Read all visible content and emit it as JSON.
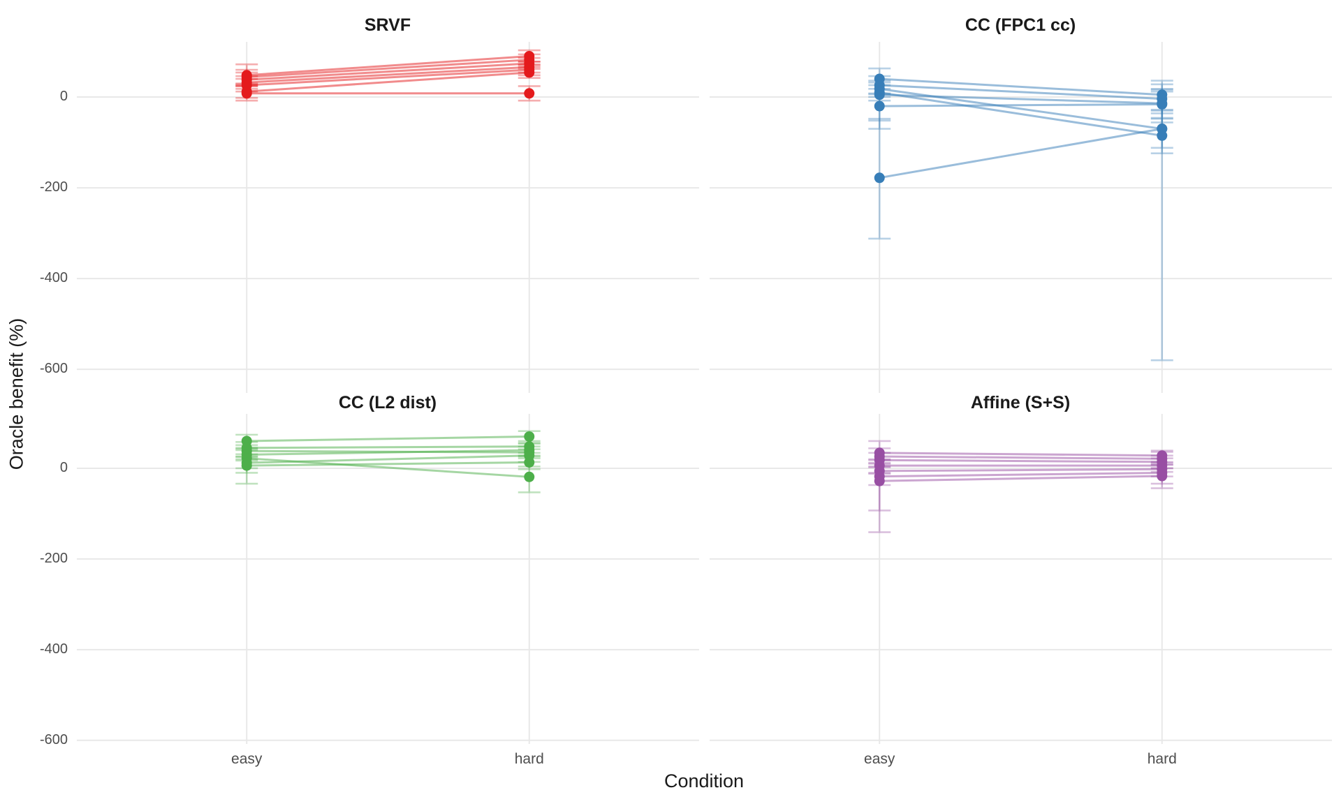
{
  "figure": {
    "background": "#ffffff",
    "text_color": "#1a1a1a",
    "tick_text_color": "#4d4d4d",
    "gridline_color": "#e8e8e8"
  },
  "chart_data": {
    "type": "line",
    "title": "",
    "xlabel": "Condition",
    "ylabel": "Oracle benefit (%)",
    "categories": [
      "easy",
      "hard"
    ],
    "y_ticks": [
      0,
      -200,
      -400,
      -600
    ],
    "grid": "major",
    "legend": "none",
    "rows": [
      {
        "ylim": [
          121.5,
          -652
        ]
      },
      {
        "ylim": [
          120,
          -608
        ]
      }
    ],
    "panels": [
      {
        "title": "SRVF",
        "color": "#e41a1c",
        "row": 0,
        "col": 0,
        "subjects": [
          {
            "easy": {
              "value": 48,
              "ci": [
                30,
                72
              ]
            },
            "hard": {
              "value": 90,
              "ci": [
                78,
                103
              ]
            }
          },
          {
            "easy": {
              "value": 44,
              "ci": [
                28,
                60
              ]
            },
            "hard": {
              "value": 82,
              "ci": [
                70,
                94
              ]
            }
          },
          {
            "easy": {
              "value": 38,
              "ci": [
                24,
                54
              ]
            },
            "hard": {
              "value": 74,
              "ci": [
                62,
                86
              ]
            }
          },
          {
            "easy": {
              "value": 32,
              "ci": [
                18,
                46
              ]
            },
            "hard": {
              "value": 66,
              "ci": [
                54,
                78
              ]
            }
          },
          {
            "easy": {
              "value": 26,
              "ci": [
                12,
                40
              ]
            },
            "hard": {
              "value": 60,
              "ci": [
                48,
                72
              ]
            }
          },
          {
            "easy": {
              "value": 12,
              "ci": [
                -2,
                26
              ]
            },
            "hard": {
              "value": 54,
              "ci": [
                42,
                66
              ]
            }
          },
          {
            "easy": {
              "value": 8,
              "ci": [
                -8,
                24
              ]
            },
            "hard": {
              "value": 8,
              "ci": [
                -8,
                24
              ]
            }
          }
        ]
      },
      {
        "title": "CC (FPC1 cc)",
        "color": "#377eb8",
        "row": 0,
        "col": 1,
        "subjects": [
          {
            "easy": {
              "value": 40,
              "ci": [
                18,
                63
              ]
            },
            "hard": {
              "value": 5,
              "ci": [
                -28,
                36
              ]
            }
          },
          {
            "easy": {
              "value": 26,
              "ci": [
                6,
                46
              ]
            },
            "hard": {
              "value": -4,
              "ci": [
                -36,
                16
              ]
            }
          },
          {
            "easy": {
              "value": 18,
              "ci": [
                0,
                36
              ]
            },
            "hard": {
              "value": -70,
              "ci": [
                -112,
                -30
              ]
            }
          },
          {
            "easy": {
              "value": 10,
              "ci": [
                -8,
                26
              ]
            },
            "hard": {
              "value": -85,
              "ci": [
                -124,
                -48
              ]
            }
          },
          {
            "easy": {
              "value": 5,
              "ci": [
                -70,
                32
              ]
            },
            "hard": {
              "value": -14,
              "ci": [
                -46,
                12
              ]
            }
          },
          {
            "easy": {
              "value": -20,
              "ci": [
                -52,
                8
              ]
            },
            "hard": {
              "value": -16,
              "ci": [
                -56,
                18
              ]
            }
          },
          {
            "easy": {
              "value": -178,
              "ci": [
                -312,
                -48
              ]
            },
            "hard": {
              "value": -70,
              "ci": [
                -580,
                28
              ]
            }
          }
        ]
      },
      {
        "title": "CC (L2 dist)",
        "color": "#4daf4a",
        "row": 1,
        "col": 0,
        "subjects": [
          {
            "easy": {
              "value": 60,
              "ci": [
                45,
                74
              ]
            },
            "hard": {
              "value": 70,
              "ci": [
                56,
                82
              ]
            }
          },
          {
            "easy": {
              "value": 45,
              "ci": [
                31,
                58
              ]
            },
            "hard": {
              "value": 48,
              "ci": [
                34,
                60
              ]
            }
          },
          {
            "easy": {
              "value": 38,
              "ci": [
                25,
                51
              ]
            },
            "hard": {
              "value": 35,
              "ci": [
                22,
                48
              ]
            }
          },
          {
            "easy": {
              "value": 30,
              "ci": [
                17,
                43
              ]
            },
            "hard": {
              "value": 40,
              "ci": [
                26,
                54
              ]
            }
          },
          {
            "easy": {
              "value": 22,
              "ci": [
                -34,
                40
              ]
            },
            "hard": {
              "value": -19,
              "ci": [
                -53,
                4
              ]
            }
          },
          {
            "easy": {
              "value": 12,
              "ci": [
                0,
                26
              ]
            },
            "hard": {
              "value": 28,
              "ci": [
                14,
                42
              ]
            }
          },
          {
            "easy": {
              "value": 6,
              "ci": [
                -10,
                20
              ]
            },
            "hard": {
              "value": 13,
              "ci": [
                -2,
                28
              ]
            }
          }
        ]
      },
      {
        "title": "Affine (S+S)",
        "color": "#984ea3",
        "row": 1,
        "col": 1,
        "subjects": [
          {
            "easy": {
              "value": 34,
              "ci": [
                18,
                60
              ]
            },
            "hard": {
              "value": 28,
              "ci": [
                14,
                39
              ]
            }
          },
          {
            "easy": {
              "value": 26,
              "ci": [
                12,
                44
              ]
            },
            "hard": {
              "value": 21,
              "ci": [
                8,
                36
              ]
            }
          },
          {
            "easy": {
              "value": 18,
              "ci": [
                2,
                34
              ]
            },
            "hard": {
              "value": 14,
              "ci": [
                0,
                28
              ]
            }
          },
          {
            "easy": {
              "value": 6,
              "ci": [
                -10,
                20
              ]
            },
            "hard": {
              "value": 6,
              "ci": [
                -8,
                22
              ]
            }
          },
          {
            "easy": {
              "value": -6,
              "ci": [
                -37,
                10
              ]
            },
            "hard": {
              "value": -2,
              "ci": [
                -18,
                12
              ]
            }
          },
          {
            "easy": {
              "value": -18,
              "ci": [
                -93,
                4
              ]
            },
            "hard": {
              "value": -10,
              "ci": [
                -34,
                8
              ]
            }
          },
          {
            "easy": {
              "value": -28,
              "ci": [
                -141,
                -12
              ]
            },
            "hard": {
              "value": -17,
              "ci": [
                -44,
                0
              ]
            }
          }
        ]
      }
    ]
  }
}
